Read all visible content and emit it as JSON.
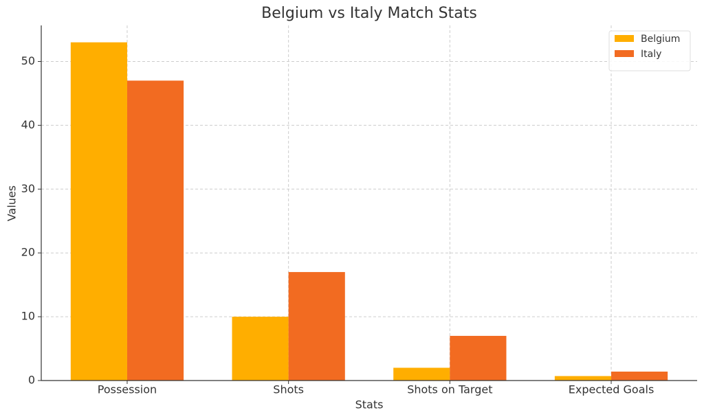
{
  "chart_data": {
    "type": "bar",
    "title": "Belgium vs Italy Match Stats",
    "x_label": "Stats",
    "y_label": "Values",
    "categories": [
      "Possession",
      "Shots",
      "Shots on Target",
      "Expected Goals"
    ],
    "series": [
      {
        "name": "Belgium",
        "color": "#ffae00",
        "values": [
          53,
          10,
          2,
          0.7
        ]
      },
      {
        "name": "Italy",
        "color": "#f26b21",
        "values": [
          47,
          17,
          7,
          1.4
        ]
      }
    ],
    "ylim": [
      0,
      55.65
    ],
    "yticks": [
      0,
      10,
      20,
      30,
      40,
      50
    ],
    "grid": true,
    "legend": "upper right"
  }
}
